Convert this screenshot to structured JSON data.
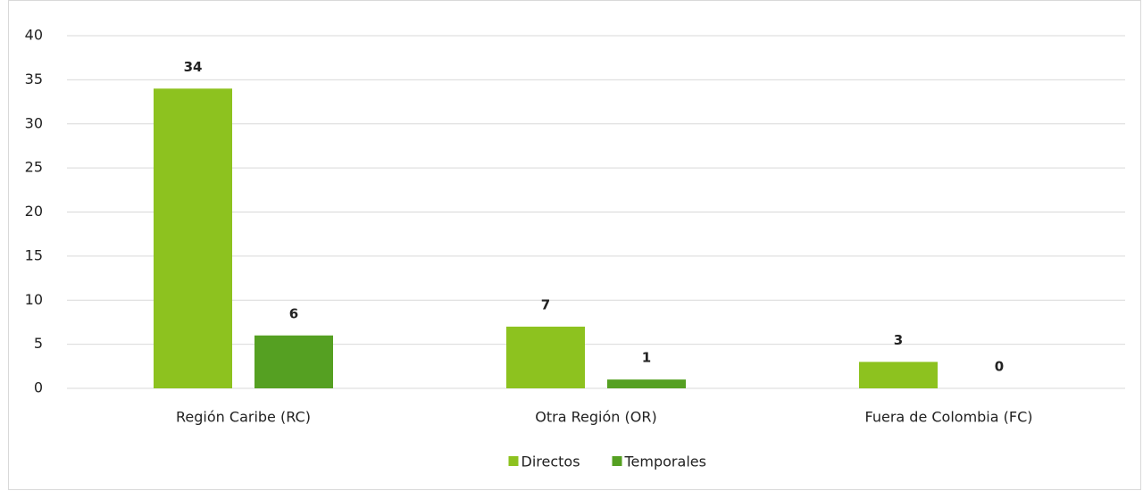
{
  "chart_data": {
    "type": "bar",
    "categories": [
      "Región Caribe (RC)",
      "Otra Región (OR)",
      "Fuera de Colombia (FC)"
    ],
    "series": [
      {
        "name": "Directos",
        "color": "#8dc21f",
        "values": [
          34,
          7,
          3
        ]
      },
      {
        "name": "Temporales",
        "color": "#55a022",
        "values": [
          6,
          1,
          0
        ]
      }
    ],
    "ylim": [
      0,
      40
    ],
    "yticks": [
      0,
      5,
      10,
      15,
      20,
      25,
      30,
      35,
      40
    ],
    "grid": true,
    "legend": "bottom"
  }
}
